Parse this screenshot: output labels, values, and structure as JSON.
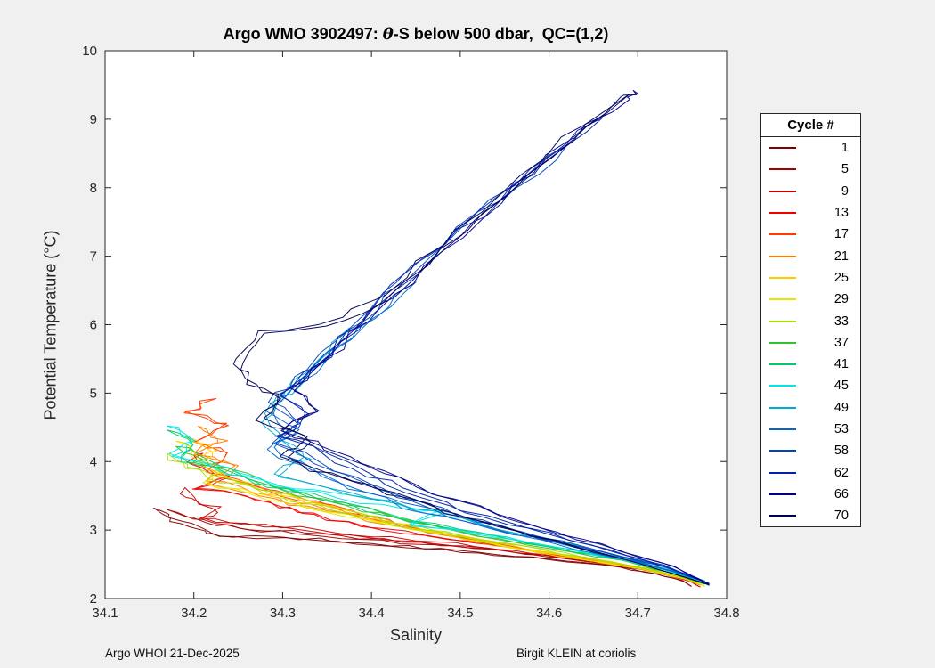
{
  "title": {
    "prefix": "Argo WMO 3902497: ",
    "theta": "θ",
    "suffix": "-S below 500 dbar,  QC=(1,2)"
  },
  "footer": {
    "left": "Argo WHOI 21-Dec-2025",
    "right": "Birgit KLEIN at coriolis"
  },
  "chart_data": {
    "type": "line",
    "title": "Argo WMO 3902497: θ-S below 500 dbar,  QC=(1,2)",
    "xlabel": "Salinity",
    "ylabel": "Potential Temperature (°C)",
    "xlim": [
      34.1,
      34.8
    ],
    "ylim": [
      2,
      10
    ],
    "xticks": [
      34.1,
      34.2,
      34.3,
      34.4,
      34.5,
      34.6,
      34.7,
      34.8
    ],
    "xtick_labels": [
      "34.1",
      "34.2",
      "34.3",
      "34.4",
      "34.5",
      "34.6",
      "34.7",
      "34.8"
    ],
    "yticks": [
      2,
      3,
      4,
      5,
      6,
      7,
      8,
      9,
      10
    ],
    "ytick_labels": [
      "2",
      "3",
      "4",
      "5",
      "6",
      "7",
      "8",
      "9",
      "10"
    ],
    "grid": false,
    "legend_title": "Cycle #",
    "legend_position": "outside-right",
    "line_width": 1,
    "jitter": {
      "x": 0.006,
      "y": 0.04,
      "passes": 2
    },
    "series": [
      {
        "name": "1",
        "color": "#800000",
        "points": [
          [
            34.155,
            3.32
          ],
          [
            34.175,
            3.18
          ],
          [
            34.21,
            3.02
          ],
          [
            34.23,
            2.92
          ],
          [
            34.27,
            2.9
          ],
          [
            34.32,
            2.88
          ],
          [
            34.38,
            2.82
          ],
          [
            34.44,
            2.76
          ],
          [
            34.5,
            2.7
          ],
          [
            34.56,
            2.63
          ],
          [
            34.62,
            2.55
          ],
          [
            34.68,
            2.46
          ],
          [
            34.72,
            2.36
          ],
          [
            34.75,
            2.26
          ],
          [
            34.76,
            2.18
          ]
        ]
      },
      {
        "name": "5",
        "color": "#a50000",
        "points": [
          [
            34.17,
            3.3
          ],
          [
            34.2,
            3.18
          ],
          [
            34.24,
            3.06
          ],
          [
            34.28,
            3.0
          ],
          [
            34.33,
            2.95
          ],
          [
            34.39,
            2.88
          ],
          [
            34.46,
            2.8
          ],
          [
            34.53,
            2.72
          ],
          [
            34.6,
            2.62
          ],
          [
            34.66,
            2.52
          ],
          [
            34.71,
            2.42
          ],
          [
            34.75,
            2.3
          ],
          [
            34.77,
            2.2
          ]
        ]
      },
      {
        "name": "9",
        "color": "#cb0000",
        "points": [
          [
            34.19,
            3.62
          ],
          [
            34.205,
            3.45
          ],
          [
            34.23,
            3.3
          ],
          [
            34.21,
            3.18
          ],
          [
            34.26,
            3.1
          ],
          [
            34.32,
            3.02
          ],
          [
            34.38,
            2.94
          ],
          [
            34.45,
            2.85
          ],
          [
            34.52,
            2.76
          ],
          [
            34.59,
            2.65
          ],
          [
            34.66,
            2.53
          ],
          [
            34.72,
            2.4
          ],
          [
            34.76,
            2.25
          ],
          [
            34.77,
            2.17
          ]
        ]
      },
      {
        "name": "13",
        "color": "#f10000",
        "points": [
          [
            34.21,
            4.12
          ],
          [
            34.19,
            3.93
          ],
          [
            34.235,
            3.78
          ],
          [
            34.2,
            3.6
          ],
          [
            34.25,
            3.47
          ],
          [
            34.295,
            3.33
          ],
          [
            34.33,
            3.2
          ],
          [
            34.39,
            3.05
          ],
          [
            34.46,
            2.9
          ],
          [
            34.54,
            2.75
          ],
          [
            34.62,
            2.6
          ],
          [
            34.69,
            2.46
          ],
          [
            34.74,
            2.32
          ],
          [
            34.77,
            2.2
          ]
        ]
      },
      {
        "name": "17",
        "color": "#ff3900",
        "points": [
          [
            34.225,
            4.92
          ],
          [
            34.2,
            4.68
          ],
          [
            34.245,
            4.5
          ],
          [
            34.21,
            4.28
          ],
          [
            34.245,
            4.08
          ],
          [
            34.22,
            3.86
          ],
          [
            34.27,
            3.65
          ],
          [
            34.32,
            3.45
          ],
          [
            34.38,
            3.25
          ],
          [
            34.44,
            3.05
          ],
          [
            34.51,
            2.87
          ],
          [
            34.58,
            2.7
          ],
          [
            34.65,
            2.55
          ],
          [
            34.71,
            2.42
          ],
          [
            34.76,
            2.25
          ]
        ]
      },
      {
        "name": "21",
        "color": "#ff7b00",
        "points": [
          [
            34.205,
            4.52
          ],
          [
            34.235,
            4.33
          ],
          [
            34.205,
            4.13
          ],
          [
            34.25,
            3.93
          ],
          [
            34.22,
            3.73
          ],
          [
            34.275,
            3.54
          ],
          [
            34.33,
            3.36
          ],
          [
            34.395,
            3.17
          ],
          [
            34.465,
            2.97
          ],
          [
            34.54,
            2.79
          ],
          [
            34.62,
            2.62
          ],
          [
            34.69,
            2.47
          ],
          [
            34.745,
            2.32
          ],
          [
            34.77,
            2.2
          ]
        ]
      },
      {
        "name": "25",
        "color": "#ffc800",
        "points": [
          [
            34.19,
            4.38
          ],
          [
            34.22,
            4.18
          ],
          [
            34.2,
            3.97
          ],
          [
            34.24,
            3.77
          ],
          [
            34.28,
            3.57
          ],
          [
            34.34,
            3.37
          ],
          [
            34.41,
            3.14
          ],
          [
            34.49,
            2.93
          ],
          [
            34.57,
            2.74
          ],
          [
            34.65,
            2.57
          ],
          [
            34.71,
            2.44
          ],
          [
            34.76,
            2.27
          ],
          [
            34.775,
            2.18
          ]
        ]
      },
      {
        "name": "29",
        "color": "#e6e600",
        "points": [
          [
            34.18,
            4.3
          ],
          [
            34.2,
            4.07
          ],
          [
            34.23,
            3.87
          ],
          [
            34.21,
            3.69
          ],
          [
            34.265,
            3.52
          ],
          [
            34.325,
            3.33
          ],
          [
            34.395,
            3.12
          ],
          [
            34.475,
            2.93
          ],
          [
            34.555,
            2.74
          ],
          [
            34.635,
            2.57
          ],
          [
            34.705,
            2.43
          ],
          [
            34.755,
            2.28
          ],
          [
            34.775,
            2.18
          ]
        ]
      },
      {
        "name": "33",
        "color": "#aadd00",
        "points": [
          [
            34.17,
            4.12
          ],
          [
            34.2,
            3.93
          ],
          [
            34.24,
            3.73
          ],
          [
            34.295,
            3.53
          ],
          [
            34.355,
            3.33
          ],
          [
            34.43,
            3.1
          ],
          [
            34.51,
            2.9
          ],
          [
            34.59,
            2.72
          ],
          [
            34.67,
            2.54
          ],
          [
            34.73,
            2.38
          ],
          [
            34.775,
            2.22
          ]
        ]
      },
      {
        "name": "37",
        "color": "#30c030",
        "points": [
          [
            34.18,
            4.22
          ],
          [
            34.21,
            4.02
          ],
          [
            34.25,
            3.8
          ],
          [
            34.3,
            3.58
          ],
          [
            34.365,
            3.36
          ],
          [
            34.44,
            3.13
          ],
          [
            34.52,
            2.92
          ],
          [
            34.6,
            2.73
          ],
          [
            34.68,
            2.55
          ],
          [
            34.735,
            2.38
          ],
          [
            34.775,
            2.21
          ]
        ]
      },
      {
        "name": "41",
        "color": "#00cc66",
        "points": [
          [
            34.17,
            4.46
          ],
          [
            34.2,
            4.24
          ],
          [
            34.18,
            4.02
          ],
          [
            34.23,
            3.83
          ],
          [
            34.28,
            3.63
          ],
          [
            34.345,
            3.43
          ],
          [
            34.42,
            3.2
          ],
          [
            34.5,
            3.0
          ],
          [
            34.575,
            2.82
          ],
          [
            34.65,
            2.63
          ],
          [
            34.715,
            2.47
          ],
          [
            34.765,
            2.28
          ],
          [
            34.78,
            2.19
          ]
        ]
      },
      {
        "name": "45",
        "color": "#00e6e6",
        "points": [
          [
            34.17,
            4.52
          ],
          [
            34.2,
            4.33
          ],
          [
            34.175,
            4.12
          ],
          [
            34.22,
            3.93
          ],
          [
            34.27,
            3.74
          ],
          [
            34.33,
            3.56
          ],
          [
            34.41,
            3.4
          ],
          [
            34.48,
            3.26
          ],
          [
            34.44,
            3.1
          ],
          [
            34.52,
            2.95
          ],
          [
            34.6,
            2.78
          ],
          [
            34.67,
            2.6
          ],
          [
            34.73,
            2.42
          ],
          [
            34.775,
            2.24
          ]
        ]
      },
      {
        "name": "49",
        "color": "#00aacc",
        "points": [
          [
            34.375,
            5.95
          ],
          [
            34.355,
            5.62
          ],
          [
            34.33,
            5.25
          ],
          [
            34.3,
            4.92
          ],
          [
            34.28,
            4.62
          ],
          [
            34.305,
            4.33
          ],
          [
            34.33,
            4.06
          ],
          [
            34.3,
            3.82
          ],
          [
            34.36,
            3.6
          ],
          [
            34.43,
            3.4
          ],
          [
            34.5,
            3.17
          ],
          [
            34.57,
            2.95
          ],
          [
            34.64,
            2.73
          ],
          [
            34.71,
            2.52
          ],
          [
            34.775,
            2.26
          ]
        ]
      },
      {
        "name": "53",
        "color": "#0066cc",
        "points": [
          [
            34.45,
            6.62
          ],
          [
            34.4,
            6.12
          ],
          [
            34.36,
            5.63
          ],
          [
            34.32,
            5.15
          ],
          [
            34.285,
            4.73
          ],
          [
            34.315,
            4.45
          ],
          [
            34.285,
            4.18
          ],
          [
            34.33,
            3.92
          ],
          [
            34.38,
            3.64
          ],
          [
            34.44,
            3.38
          ],
          [
            34.51,
            3.12
          ],
          [
            34.58,
            2.9
          ],
          [
            34.65,
            2.68
          ],
          [
            34.72,
            2.48
          ],
          [
            34.775,
            2.25
          ]
        ]
      },
      {
        "name": "58",
        "color": "#0044bb",
        "points": [
          [
            34.62,
            8.62
          ],
          [
            34.56,
            8.02
          ],
          [
            34.5,
            7.42
          ],
          [
            34.45,
            6.82
          ],
          [
            34.4,
            6.24
          ],
          [
            34.36,
            5.72
          ],
          [
            34.32,
            5.22
          ],
          [
            34.29,
            4.86
          ],
          [
            34.32,
            4.56
          ],
          [
            34.29,
            4.3
          ],
          [
            34.34,
            4.0
          ],
          [
            34.39,
            3.7
          ],
          [
            34.45,
            3.4
          ],
          [
            34.52,
            3.13
          ],
          [
            34.59,
            2.9
          ],
          [
            34.66,
            2.68
          ],
          [
            34.73,
            2.46
          ],
          [
            34.775,
            2.24
          ]
        ]
      },
      {
        "name": "62",
        "color": "#0022aa",
        "points": [
          [
            34.66,
            9.02
          ],
          [
            34.6,
            8.42
          ],
          [
            34.54,
            7.8
          ],
          [
            34.48,
            7.12
          ],
          [
            34.43,
            6.52
          ],
          [
            34.38,
            5.94
          ],
          [
            34.34,
            5.42
          ],
          [
            34.3,
            4.96
          ],
          [
            34.33,
            4.66
          ],
          [
            34.3,
            4.37
          ],
          [
            34.35,
            4.07
          ],
          [
            34.4,
            3.77
          ],
          [
            34.46,
            3.46
          ],
          [
            34.53,
            3.17
          ],
          [
            34.6,
            2.93
          ],
          [
            34.67,
            2.69
          ],
          [
            34.73,
            2.47
          ],
          [
            34.78,
            2.22
          ]
        ]
      },
      {
        "name": "66",
        "color": "#000088",
        "points": [
          [
            34.695,
            9.42
          ],
          [
            34.685,
            9.3
          ],
          [
            34.62,
            8.68
          ],
          [
            34.56,
            8.0
          ],
          [
            34.5,
            7.3
          ],
          [
            34.44,
            6.62
          ],
          [
            34.39,
            6.02
          ],
          [
            34.35,
            5.5
          ],
          [
            34.31,
            5.05
          ],
          [
            34.34,
            4.76
          ],
          [
            34.3,
            4.46
          ],
          [
            34.35,
            4.16
          ],
          [
            34.41,
            3.85
          ],
          [
            34.47,
            3.52
          ],
          [
            34.54,
            3.22
          ],
          [
            34.61,
            2.96
          ],
          [
            34.68,
            2.7
          ],
          [
            34.74,
            2.46
          ],
          [
            34.78,
            2.21
          ]
        ]
      },
      {
        "name": "70",
        "color": "#000055",
        "points": [
          [
            34.69,
            9.36
          ],
          [
            34.62,
            8.72
          ],
          [
            34.55,
            7.92
          ],
          [
            34.48,
            7.12
          ],
          [
            34.42,
            6.44
          ],
          [
            34.37,
            6.08
          ],
          [
            34.28,
            5.88
          ],
          [
            34.25,
            5.5
          ],
          [
            34.26,
            5.18
          ],
          [
            34.3,
            4.95
          ],
          [
            34.28,
            4.62
          ],
          [
            34.33,
            4.32
          ],
          [
            34.3,
            4.05
          ],
          [
            34.36,
            3.8
          ],
          [
            34.42,
            3.55
          ],
          [
            34.49,
            3.26
          ],
          [
            34.56,
            3.0
          ],
          [
            34.63,
            2.76
          ],
          [
            34.7,
            2.52
          ],
          [
            34.78,
            2.2
          ]
        ]
      }
    ]
  }
}
